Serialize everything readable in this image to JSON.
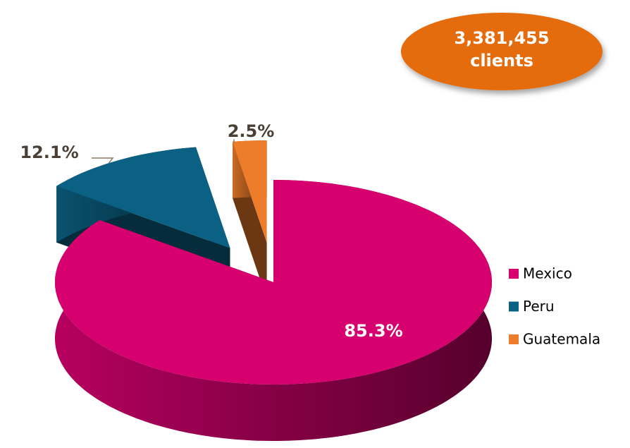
{
  "chart_data": {
    "type": "pie",
    "annotation": "3,381,455 clients",
    "categories": [
      "Mexico",
      "Peru",
      "Guatemala"
    ],
    "values": [
      85.3,
      12.1,
      2.5
    ],
    "value_labels": [
      "85.3%",
      "12.1%",
      "2.5%"
    ],
    "colors": [
      "#d6006f",
      "#0b6183",
      "#ee7d2b"
    ],
    "legend": "right"
  }
}
